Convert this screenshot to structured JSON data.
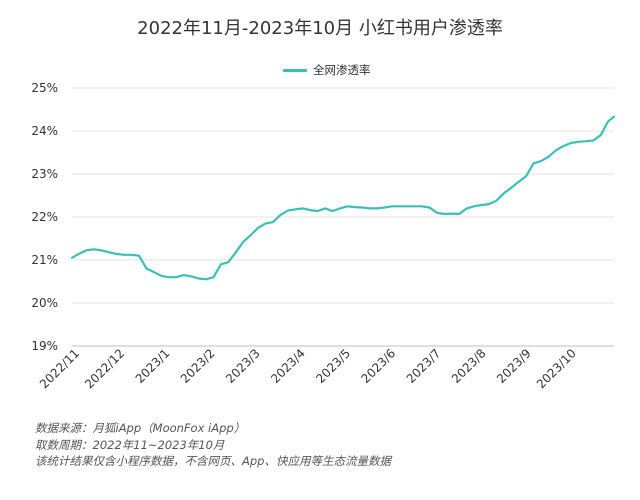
{
  "chart_data": {
    "type": "line",
    "title": "2022年11月-2023年10月 小红书用户渗透率",
    "legend_position": "top-center",
    "grid": "horizontal",
    "ylim": [
      19,
      25
    ],
    "y_ticks": [
      19,
      20,
      21,
      22,
      23,
      24,
      25
    ],
    "y_tick_labels": [
      "19%",
      "20%",
      "21%",
      "22%",
      "23%",
      "24%",
      "25%"
    ],
    "x_tick_labels": [
      "2022/11",
      "2022/12",
      "2023/1",
      "2023/2",
      "2023/3",
      "2023/4",
      "2023/5",
      "2023/6",
      "2023/7",
      "2023/8",
      "2023/9",
      "2023/10"
    ],
    "x_range": [
      "2022-11-01",
      "2023-10-31"
    ],
    "color": "#3bbfb6",
    "series": [
      {
        "name": "全网渗透率",
        "x": [
          "2022-11-01",
          "2022-11-06",
          "2022-11-11",
          "2022-11-16",
          "2022-11-21",
          "2022-11-26",
          "2022-12-01",
          "2022-12-06",
          "2022-12-11",
          "2022-12-16",
          "2022-12-21",
          "2022-12-26",
          "2022-12-31",
          "2023-01-05",
          "2023-01-10",
          "2023-01-15",
          "2023-01-20",
          "2023-01-25",
          "2023-01-30",
          "2023-02-04",
          "2023-02-09",
          "2023-02-14",
          "2023-02-19",
          "2023-02-24",
          "2023-03-01",
          "2023-03-06",
          "2023-03-11",
          "2023-03-16",
          "2023-03-21",
          "2023-03-26",
          "2023-03-31",
          "2023-04-05",
          "2023-04-10",
          "2023-04-15",
          "2023-04-20",
          "2023-04-25",
          "2023-04-30",
          "2023-05-05",
          "2023-05-10",
          "2023-05-15",
          "2023-05-20",
          "2023-05-25",
          "2023-05-30",
          "2023-06-04",
          "2023-06-09",
          "2023-06-14",
          "2023-06-19",
          "2023-06-24",
          "2023-06-29",
          "2023-07-04",
          "2023-07-09",
          "2023-07-14",
          "2023-07-19",
          "2023-07-24",
          "2023-07-29",
          "2023-08-03",
          "2023-08-08",
          "2023-08-13",
          "2023-08-18",
          "2023-08-23",
          "2023-08-28",
          "2023-09-02",
          "2023-09-07",
          "2023-09-12",
          "2023-09-17",
          "2023-09-22",
          "2023-09-27",
          "2023-10-02",
          "2023-10-07",
          "2023-10-12",
          "2023-10-17",
          "2023-10-22",
          "2023-10-27",
          "2023-10-31"
        ],
        "values": [
          21.05,
          21.15,
          21.23,
          21.25,
          21.22,
          21.18,
          21.14,
          21.12,
          21.12,
          21.1,
          20.8,
          20.72,
          20.63,
          20.6,
          20.6,
          20.65,
          20.62,
          20.57,
          20.55,
          20.6,
          20.9,
          20.95,
          21.18,
          21.42,
          21.58,
          21.75,
          21.85,
          21.88,
          22.05,
          22.15,
          22.18,
          22.2,
          22.16,
          22.14,
          22.2,
          22.14,
          22.2,
          22.25,
          22.23,
          22.22,
          22.2,
          22.2,
          22.22,
          22.25,
          22.25,
          22.25,
          22.25,
          22.25,
          22.22,
          22.1,
          22.07,
          22.08,
          22.07,
          22.2,
          22.25,
          22.28,
          22.3,
          22.38,
          22.55,
          22.68,
          22.82,
          22.95,
          23.25,
          23.3,
          23.4,
          23.55,
          23.65,
          23.72,
          23.75,
          23.76,
          23.78,
          23.9,
          24.22,
          24.33
        ]
      }
    ]
  },
  "notes": [
    "数据来源：月狐iApp（MoonFox iApp）",
    "取数周期：2022年11~2023年10月",
    "该统计结果仅含小程序数据，不含网页、App、快应用等生态流量数据"
  ]
}
